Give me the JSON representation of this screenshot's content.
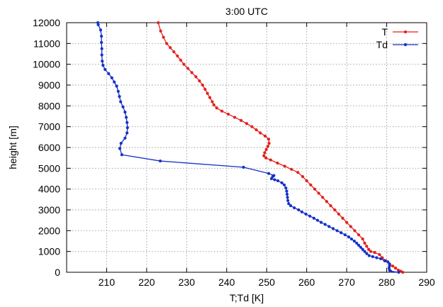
{
  "chart_data": {
    "type": "line",
    "title": "3:00 UTC",
    "xlabel": "T;Td [K]",
    "ylabel": "height [m]",
    "xlim": [
      200,
      290
    ],
    "ylim": [
      0,
      12000
    ],
    "x_ticks": [
      210,
      220,
      230,
      240,
      250,
      260,
      270,
      280,
      290
    ],
    "y_ticks": [
      0,
      1000,
      2000,
      3000,
      4000,
      5000,
      6000,
      7000,
      8000,
      9000,
      10000,
      11000,
      12000
    ],
    "grid": true,
    "legend_position": "top-right",
    "series": [
      {
        "name": "T",
        "color": "#e3201b",
        "points": [
          [
            284.0,
            0
          ],
          [
            283.5,
            50
          ],
          [
            282.9,
            100
          ],
          [
            282.2,
            200
          ],
          [
            281.5,
            300
          ],
          [
            280.7,
            400
          ],
          [
            279.8,
            550
          ],
          [
            278.9,
            700
          ],
          [
            278.2,
            850
          ],
          [
            277.0,
            950
          ],
          [
            276.0,
            1000
          ],
          [
            275.5,
            1100
          ],
          [
            275.0,
            1250
          ],
          [
            274.5,
            1400
          ],
          [
            274.0,
            1600
          ],
          [
            273.0,
            1800
          ],
          [
            272.0,
            2000
          ],
          [
            271.0,
            2200
          ],
          [
            270.0,
            2400
          ],
          [
            269.0,
            2600
          ],
          [
            268.0,
            2800
          ],
          [
            267.0,
            3000
          ],
          [
            266.0,
            3200
          ],
          [
            265.0,
            3400
          ],
          [
            264.0,
            3600
          ],
          [
            263.0,
            3800
          ],
          [
            262.0,
            4000
          ],
          [
            261.0,
            4200
          ],
          [
            260.0,
            4400
          ],
          [
            259.0,
            4600
          ],
          [
            257.8,
            4800
          ],
          [
            256.2,
            4950
          ],
          [
            254.5,
            5100
          ],
          [
            252.7,
            5250
          ],
          [
            251.0,
            5400
          ],
          [
            249.8,
            5500
          ],
          [
            249.3,
            5600
          ],
          [
            249.5,
            5750
          ],
          [
            249.9,
            5900
          ],
          [
            250.3,
            6050
          ],
          [
            250.6,
            6200
          ],
          [
            250.5,
            6400
          ],
          [
            249.6,
            6550
          ],
          [
            248.4,
            6700
          ],
          [
            247.4,
            6850
          ],
          [
            246.3,
            7000
          ],
          [
            245.0,
            7150
          ],
          [
            243.6,
            7300
          ],
          [
            242.0,
            7450
          ],
          [
            240.4,
            7600
          ],
          [
            238.8,
            7750
          ],
          [
            237.5,
            7900
          ],
          [
            236.8,
            8050
          ],
          [
            236.4,
            8200
          ],
          [
            235.8,
            8400
          ],
          [
            235.2,
            8600
          ],
          [
            234.6,
            8800
          ],
          [
            234.0,
            9000
          ],
          [
            233.2,
            9200
          ],
          [
            232.3,
            9400
          ],
          [
            231.3,
            9600
          ],
          [
            230.3,
            9800
          ],
          [
            229.3,
            10000
          ],
          [
            228.5,
            10200
          ],
          [
            227.7,
            10400
          ],
          [
            226.8,
            10600
          ],
          [
            225.9,
            10800
          ],
          [
            225.0,
            11000
          ],
          [
            224.2,
            11300
          ],
          [
            223.5,
            11600
          ],
          [
            222.9,
            12000
          ]
        ]
      },
      {
        "name": "Td",
        "color": "#1530c7",
        "points": [
          [
            283.0,
            0
          ],
          [
            281.0,
            50
          ],
          [
            280.7,
            100
          ],
          [
            280.6,
            200
          ],
          [
            280.7,
            300
          ],
          [
            280.7,
            400
          ],
          [
            280.3,
            500
          ],
          [
            279.5,
            550
          ],
          [
            278.5,
            650
          ],
          [
            277.5,
            700
          ],
          [
            276.5,
            750
          ],
          [
            275.6,
            800
          ],
          [
            275.0,
            900
          ],
          [
            274.5,
            1000
          ],
          [
            274.0,
            1100
          ],
          [
            273.5,
            1200
          ],
          [
            273.0,
            1300
          ],
          [
            272.5,
            1400
          ],
          [
            271.9,
            1500
          ],
          [
            271.2,
            1600
          ],
          [
            270.5,
            1700
          ],
          [
            269.6,
            1800
          ],
          [
            268.6,
            1900
          ],
          [
            267.6,
            2000
          ],
          [
            266.6,
            2100
          ],
          [
            265.6,
            2200
          ],
          [
            264.6,
            2300
          ],
          [
            263.6,
            2400
          ],
          [
            262.7,
            2500
          ],
          [
            261.8,
            2600
          ],
          [
            260.8,
            2700
          ],
          [
            259.8,
            2800
          ],
          [
            258.8,
            2900
          ],
          [
            258.0,
            3000
          ],
          [
            256.9,
            3100
          ],
          [
            256.0,
            3200
          ],
          [
            255.5,
            3300
          ],
          [
            255.3,
            3450
          ],
          [
            255.2,
            3600
          ],
          [
            255.1,
            3750
          ],
          [
            255.0,
            3900
          ],
          [
            254.8,
            4050
          ],
          [
            254.4,
            4200
          ],
          [
            253.8,
            4300
          ],
          [
            252.8,
            4400
          ],
          [
            252.0,
            4450
          ],
          [
            251.2,
            4500
          ],
          [
            251.5,
            4600
          ],
          [
            251.8,
            4650
          ],
          [
            250.5,
            4750
          ],
          [
            244.2,
            5050
          ],
          [
            223.4,
            5350
          ],
          [
            213.8,
            5650
          ],
          [
            213.3,
            5950
          ],
          [
            213.6,
            6200
          ],
          [
            214.6,
            6450
          ],
          [
            215.1,
            6700
          ],
          [
            215.2,
            6950
          ],
          [
            215.1,
            7200
          ],
          [
            214.9,
            7450
          ],
          [
            214.6,
            7700
          ],
          [
            214.1,
            7950
          ],
          [
            213.5,
            8200
          ],
          [
            213.2,
            8450
          ],
          [
            212.9,
            8700
          ],
          [
            212.5,
            8950
          ],
          [
            211.9,
            9150
          ],
          [
            211.3,
            9350
          ],
          [
            210.5,
            9550
          ],
          [
            209.6,
            9750
          ],
          [
            209.1,
            9950
          ],
          [
            208.9,
            10150
          ],
          [
            208.8,
            10450
          ],
          [
            208.8,
            10750
          ],
          [
            208.7,
            11050
          ],
          [
            208.7,
            11350
          ],
          [
            208.5,
            11650
          ],
          [
            207.9,
            11900
          ],
          [
            207.8,
            12000
          ]
        ]
      }
    ]
  }
}
